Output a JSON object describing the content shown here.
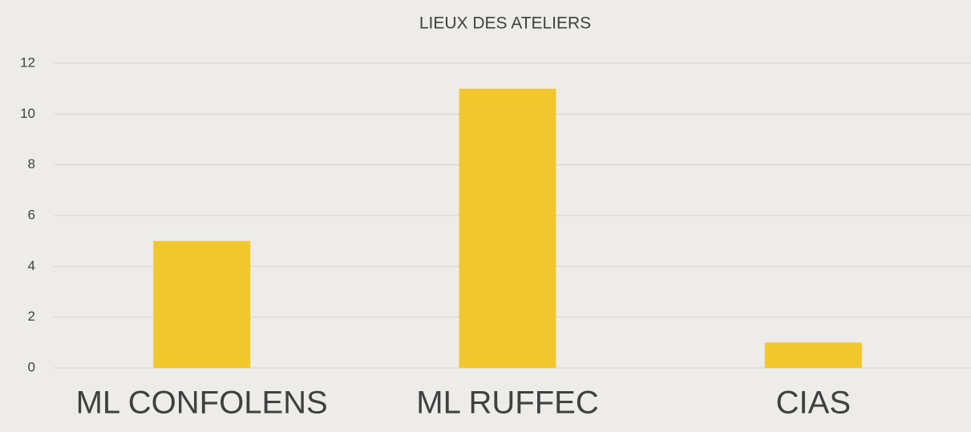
{
  "chart_data": {
    "type": "bar",
    "title": "LIEUX DES ATELIERS",
    "categories": [
      "ML CONFOLENS",
      "ML RUFFEC",
      "CIAS"
    ],
    "values": [
      5,
      11,
      1
    ],
    "color": "#f2c72e",
    "ylim": [
      0,
      12
    ],
    "yticks": [
      0,
      2,
      4,
      6,
      8,
      10,
      12
    ],
    "grid": true
  }
}
